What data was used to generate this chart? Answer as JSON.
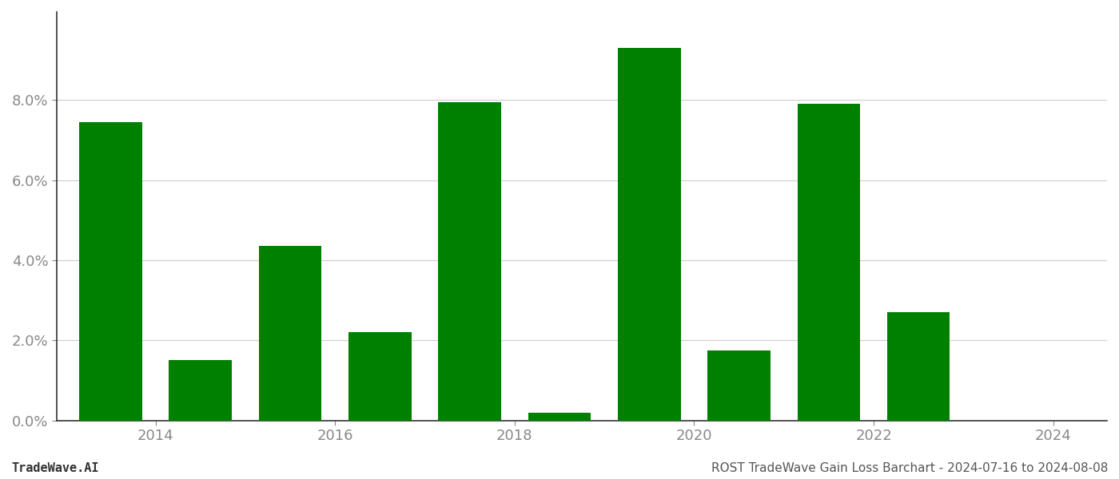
{
  "years": [
    2014,
    2015,
    2016,
    2017,
    2018,
    2019,
    2020,
    2021,
    2022,
    2023,
    2024
  ],
  "values": [
    0.0745,
    0.015,
    0.0435,
    0.022,
    0.0795,
    0.002,
    0.093,
    0.0175,
    0.079,
    0.027,
    0.0
  ],
  "bar_color": "#008000",
  "background_color": "#ffffff",
  "grid_color": "#cccccc",
  "axis_label_color": "#888888",
  "ylim": [
    0,
    0.102
  ],
  "yticks": [
    0.0,
    0.02,
    0.04,
    0.06,
    0.08
  ],
  "ytick_labels": [
    "0.0%",
    "2.0%",
    "4.0%",
    "6.0%",
    "8.0%"
  ],
  "xtick_labels": [
    "2014",
    "2016",
    "2018",
    "2020",
    "2022",
    "2024"
  ],
  "bar_width": 0.7,
  "tick_fontsize": 13,
  "footer_fontsize": 11,
  "footer_left": "TradeWave.AI",
  "footer_right": "ROST TradeWave Gain Loss Barchart - 2024-07-16 to 2024-08-08"
}
